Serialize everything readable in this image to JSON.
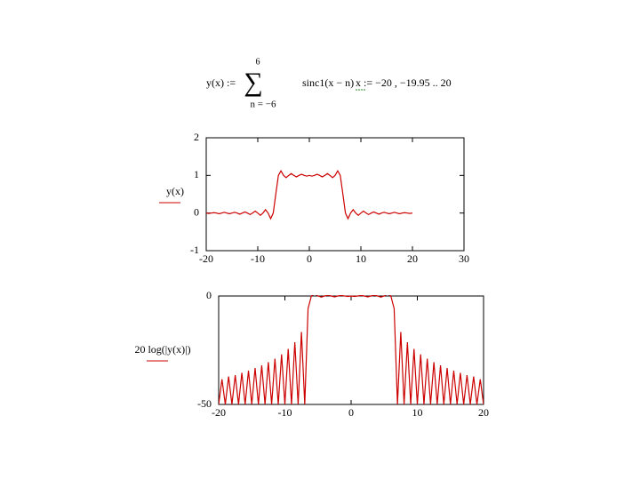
{
  "formula": {
    "lhs": "y(x) :=",
    "upper": "6",
    "lower": "n = −6",
    "term": "sinc1(x − n)",
    "range": "x := −20 , −19.95 .. 20"
  },
  "chart_data": [
    {
      "type": "line",
      "ylabel": "y(x)",
      "x": [
        -20,
        -19.5,
        -19,
        -18.5,
        -18,
        -17.5,
        -17,
        -16.5,
        -16,
        -15.5,
        -15,
        -14.5,
        -14,
        -13.5,
        -13,
        -12.5,
        -12,
        -11.5,
        -11,
        -10.5,
        -10,
        -9.5,
        -9,
        -8.5,
        -8,
        -7.5,
        -7,
        -6.5,
        -6,
        -5.5,
        -5,
        -4.5,
        -4,
        -3.5,
        -3,
        -2.5,
        -2,
        -1.5,
        -1,
        -0.5,
        0,
        0.5,
        1,
        1.5,
        2,
        2.5,
        3,
        3.5,
        4,
        4.5,
        5,
        5.5,
        6,
        6.5,
        7,
        7.5,
        8,
        8.5,
        9,
        9.5,
        10,
        10.5,
        11,
        11.5,
        12,
        12.5,
        13,
        13.5,
        14,
        14.5,
        15,
        15.5,
        16,
        16.5,
        17,
        17.5,
        18,
        18.5,
        19,
        19.5,
        20
      ],
      "series": [
        {
          "name": "y(x)",
          "color": "#cc0000",
          "values": [
            0,
            -0.01,
            0,
            0.01,
            0,
            -0.02,
            0,
            0.02,
            0,
            -0.02,
            0,
            0.02,
            0,
            -0.03,
            0,
            0.03,
            0,
            -0.04,
            0,
            0.05,
            0,
            -0.06,
            0,
            0.09,
            0,
            -0.15,
            0,
            0.51,
            1,
            1.12,
            1,
            0.94,
            1,
            1.05,
            1,
            0.96,
            1,
            1.03,
            1,
            0.98,
            1,
            0.98,
            1,
            1.03,
            1,
            0.96,
            1,
            1.05,
            1,
            0.94,
            1,
            1.12,
            1,
            0.51,
            0,
            -0.15,
            0,
            0.09,
            0,
            -0.06,
            0,
            0.05,
            0,
            -0.04,
            0,
            0.03,
            0,
            -0.03,
            0,
            0.02,
            0,
            -0.02,
            0,
            0.02,
            0,
            -0.02,
            0,
            0.01,
            0,
            -0.01,
            0
          ]
        }
      ],
      "xlim": [
        -20,
        30
      ],
      "xticks": [
        -20,
        -10,
        0,
        10,
        20,
        30
      ],
      "ylim": [
        -1,
        2
      ],
      "yticks": [
        -1,
        0,
        1,
        2
      ]
    },
    {
      "type": "line",
      "ylabel": "20 log(|y(x)|)",
      "x": [
        -20,
        -19.5,
        -19,
        -18.5,
        -18,
        -17.5,
        -17,
        -16.5,
        -16,
        -15.5,
        -15,
        -14.5,
        -14,
        -13.5,
        -13,
        -12.5,
        -12,
        -11.5,
        -11,
        -10.5,
        -10,
        -9.5,
        -9,
        -8.5,
        -8,
        -7.5,
        -7,
        -6.5,
        -6,
        -5.5,
        -5,
        -4.5,
        -4,
        -3.5,
        -3,
        -2.5,
        -2,
        -1.5,
        -1,
        -0.5,
        0,
        0.5,
        1,
        1.5,
        2,
        2.5,
        3,
        3.5,
        4,
        4.5,
        5,
        5.5,
        6,
        6.5,
        7,
        7.5,
        8,
        8.5,
        9,
        9.5,
        10,
        10.5,
        11,
        11.5,
        12,
        12.5,
        13,
        13.5,
        14,
        14.5,
        15,
        15.5,
        16,
        16.5,
        17,
        17.5,
        18,
        18.5,
        19,
        19.5,
        20
      ],
      "series": [
        {
          "name": "20 log(|y(x)|)",
          "color": "#cc0000",
          "values": [
            -50,
            -38.4,
            -50,
            -37.1,
            -50,
            -36.5,
            -50,
            -35.4,
            -50,
            -34.4,
            -50,
            -33.2,
            -50,
            -32,
            -50,
            -30.5,
            -50,
            -28.9,
            -50,
            -26.9,
            -50,
            -24.4,
            -50,
            -21.3,
            -50,
            -16.6,
            -50,
            -5.8,
            0,
            1,
            0,
            -0.5,
            0,
            0.4,
            0,
            -0.4,
            0,
            0.3,
            0,
            -0.2,
            0,
            -0.2,
            0,
            0.3,
            0,
            -0.4,
            0,
            0.4,
            0,
            -0.5,
            0,
            1,
            0,
            -5.8,
            -50,
            -16.6,
            -50,
            -21.3,
            -50,
            -24.4,
            -50,
            -26.9,
            -50,
            -28.9,
            -50,
            -30.5,
            -50,
            -32,
            -50,
            -33.2,
            -50,
            -34.4,
            -50,
            -35.4,
            -50,
            -36.5,
            -50,
            -37.1,
            -50,
            -38.4,
            -50
          ]
        }
      ],
      "xlim": [
        -20,
        20
      ],
      "xticks": [
        -20,
        -10,
        0,
        10,
        20
      ],
      "ylim": [
        -50,
        0
      ],
      "yticks": [
        -50,
        0
      ]
    }
  ]
}
